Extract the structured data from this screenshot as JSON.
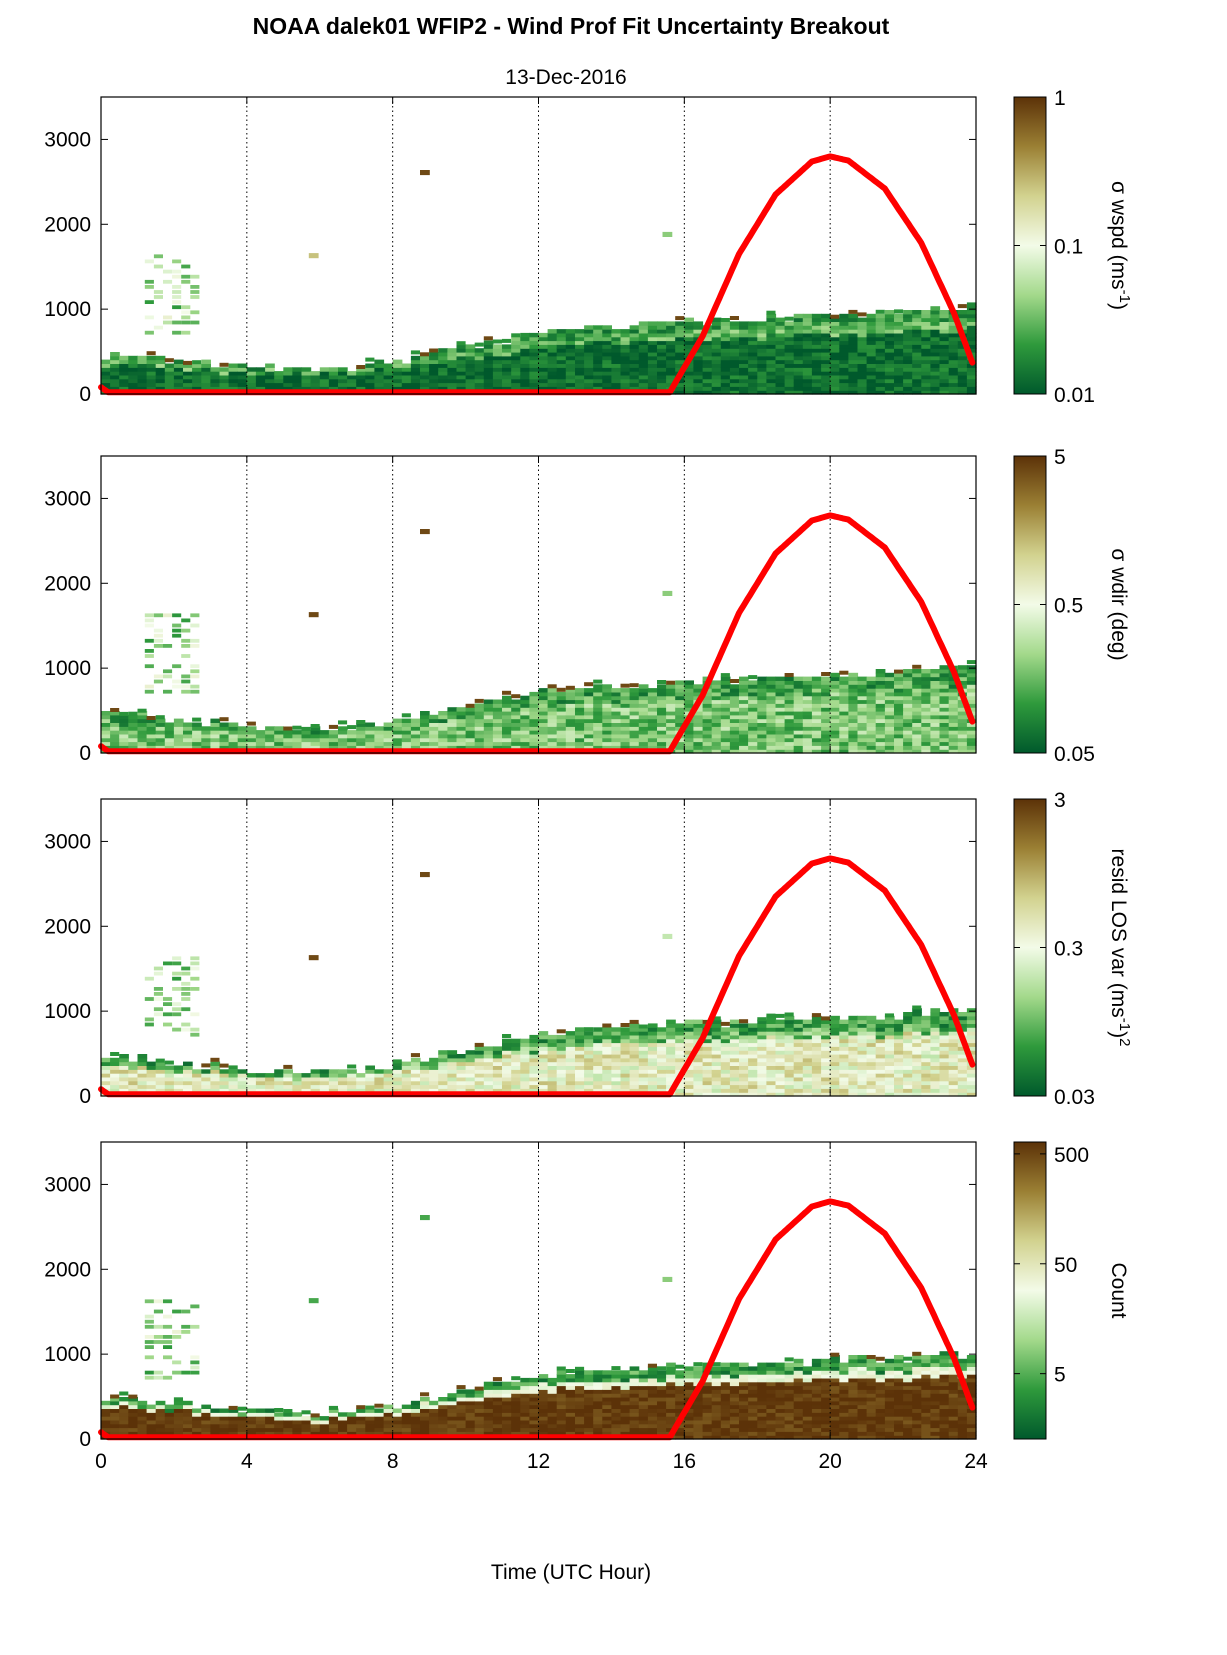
{
  "colors": {
    "sun_curve": "#ff0000",
    "colormap": [
      "#00592c",
      "#2f9a3c",
      "#a3d98b",
      "#f3fbe8",
      "#d2d28f",
      "#9b8034",
      "#5c3208"
    ],
    "cloud_base": "#0f7036",
    "white": "#ffffff"
  },
  "chart_data": [
    {
      "type": "heatmap",
      "title": "NOAA dalek01 WFIP2 - Wind Prof Fit Uncertainty Breakout",
      "subtitle": "13-Dec-2016",
      "xlabel": "",
      "ylabel": "",
      "xlim": [
        0,
        24
      ],
      "ylim": [
        0,
        3500
      ],
      "xticks": [
        "0",
        "4",
        "8",
        "12",
        "16",
        "20",
        "24"
      ],
      "yticks": [
        "0",
        "1000",
        "2000",
        "3000"
      ],
      "grid": "vertical dotted every 4 h",
      "colorbar": {
        "label": "σ wspd (ms",
        "label_sup": "-1",
        "label_end": ")",
        "scale": "log",
        "ticks": [
          "0.01",
          "0.1",
          "1"
        ],
        "tick_pos": [
          0,
          0.5,
          1
        ]
      },
      "field": {
        "boundary_m": [
          450,
          380,
          300,
          250,
          350,
          520,
          700,
          780,
          820,
          860,
          900,
          940,
          1020
        ],
        "lower_level": 0.05,
        "upper_level": 0.25,
        "noise": 0.1
      },
      "speckles": [
        {
          "t": 8.75,
          "z": 2580,
          "c": 0.95
        },
        {
          "t": 5.7,
          "z": 1600,
          "c": 0.7
        },
        {
          "t": 15.4,
          "z": 1850,
          "c": 0.3
        }
      ],
      "sun_elevation_curve": {
        "t": [
          0,
          0.2,
          15.6,
          16.5,
          17.5,
          18.5,
          19.5,
          20.0,
          20.5,
          21.5,
          22.5,
          23.4,
          23.9
        ],
        "z": [
          80,
          20,
          20,
          680,
          1650,
          2350,
          2740,
          2800,
          2750,
          2420,
          1780,
          950,
          370
        ]
      }
    },
    {
      "type": "heatmap",
      "xlim": [
        0,
        24
      ],
      "ylim": [
        0,
        3500
      ],
      "xticks": [
        "0",
        "4",
        "8",
        "12",
        "16",
        "20",
        "24"
      ],
      "yticks": [
        "0",
        "1000",
        "2000",
        "3000"
      ],
      "grid": "vertical dotted every 4 h",
      "colorbar": {
        "label": "σ wdir (deg)",
        "scale": "log",
        "ticks": [
          "0.05",
          "0.5",
          "5"
        ],
        "tick_pos": [
          0,
          0.5,
          1
        ]
      },
      "field": {
        "boundary_m": [
          450,
          380,
          300,
          250,
          350,
          520,
          700,
          780,
          820,
          860,
          900,
          940,
          1020
        ],
        "lower_level": 0.28,
        "upper_level": 0.2,
        "noise": 0.14
      },
      "speckles": [
        {
          "t": 8.75,
          "z": 2580,
          "c": 0.95
        },
        {
          "t": 5.7,
          "z": 1600,
          "c": 0.95
        },
        {
          "t": 15.4,
          "z": 1850,
          "c": 0.3
        }
      ],
      "sun_elevation_curve": {
        "t": [
          0,
          0.2,
          15.6,
          16.5,
          17.5,
          18.5,
          19.5,
          20.0,
          20.5,
          21.5,
          22.5,
          23.4,
          23.9
        ],
        "z": [
          80,
          20,
          20,
          680,
          1650,
          2350,
          2740,
          2800,
          2750,
          2420,
          1780,
          950,
          370
        ]
      }
    },
    {
      "type": "heatmap",
      "xlim": [
        0,
        24
      ],
      "ylim": [
        0,
        3500
      ],
      "xticks": [
        "0",
        "4",
        "8",
        "12",
        "16",
        "20",
        "24"
      ],
      "yticks": [
        "0",
        "1000",
        "2000",
        "3000"
      ],
      "grid": "vertical dotted every 4 h",
      "colorbar": {
        "label": "resid LOS var (ms",
        "label_sup": "-1",
        "label_end": ")",
        "label_end_sup": "2",
        "scale": "log",
        "ticks": [
          "0.03",
          "0.3",
          "3"
        ],
        "tick_pos": [
          0,
          0.5,
          1
        ]
      },
      "field": {
        "boundary_m": [
          450,
          380,
          300,
          250,
          350,
          520,
          700,
          780,
          820,
          860,
          900,
          940,
          1020
        ],
        "lower_level": 0.55,
        "upper_level": 0.25,
        "noise": 0.16
      },
      "speckles": [
        {
          "t": 8.75,
          "z": 2580,
          "c": 0.95
        },
        {
          "t": 5.7,
          "z": 1600,
          "c": 0.95
        },
        {
          "t": 15.4,
          "z": 1850,
          "c": 0.4
        }
      ],
      "sun_elevation_curve": {
        "t": [
          0,
          0.2,
          15.6,
          16.5,
          17.5,
          18.5,
          19.5,
          20.0,
          20.5,
          21.5,
          22.5,
          23.4,
          23.9
        ],
        "z": [
          80,
          20,
          20,
          680,
          1650,
          2350,
          2740,
          2800,
          2750,
          2420,
          1780,
          950,
          370
        ]
      }
    },
    {
      "type": "heatmap",
      "xlim": [
        0,
        24
      ],
      "ylim": [
        0,
        3500
      ],
      "xticks": [
        "0",
        "4",
        "8",
        "12",
        "16",
        "20",
        "24"
      ],
      "yticks": [
        "0",
        "1000",
        "2000",
        "3000"
      ],
      "xlabel": "Time (UTC Hour)",
      "grid": "vertical dotted every 4 h",
      "colorbar": {
        "label": "Count",
        "scale": "log",
        "ticks": [
          "5",
          "50",
          "500"
        ],
        "tick_pos": [
          0.22,
          0.59,
          0.96
        ]
      },
      "field": {
        "boundary_m": [
          480,
          400,
          320,
          270,
          360,
          560,
          720,
          800,
          840,
          870,
          900,
          940,
          1000
        ],
        "lower_level": 0.98,
        "upper_level": 0.5,
        "noise": 0.06
      },
      "speckles": [
        {
          "t": 8.75,
          "z": 2580,
          "c": 0.2
        },
        {
          "t": 5.7,
          "z": 1600,
          "c": 0.2
        },
        {
          "t": 15.4,
          "z": 1850,
          "c": 0.3
        }
      ],
      "sun_elevation_curve": {
        "t": [
          0,
          0.2,
          15.6,
          16.5,
          17.5,
          18.5,
          19.5,
          20.0,
          20.5,
          21.5,
          22.5,
          23.4,
          23.9
        ],
        "z": [
          80,
          20,
          20,
          680,
          1650,
          2350,
          2740,
          2800,
          2750,
          2420,
          1780,
          950,
          370
        ]
      }
    }
  ]
}
